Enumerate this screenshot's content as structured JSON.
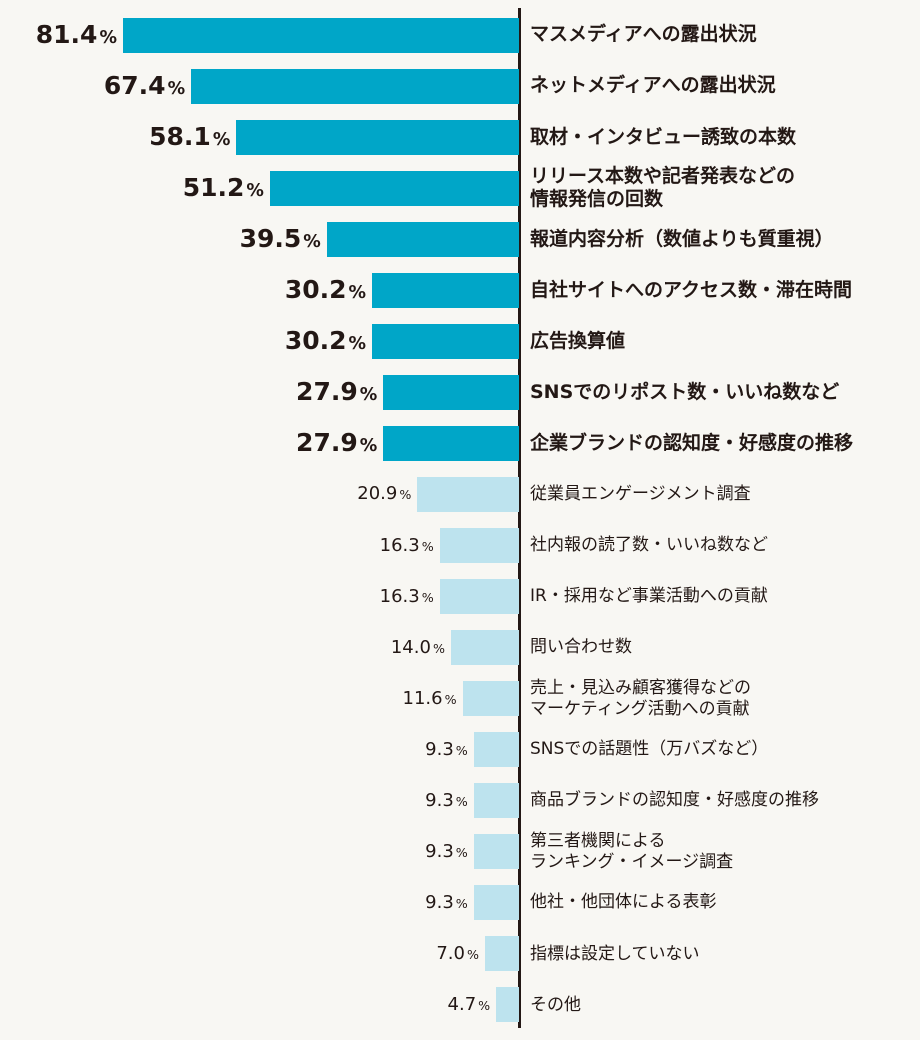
{
  "chart_data": {
    "type": "bar",
    "orientation": "horizontal",
    "title": "",
    "xlabel": "",
    "ylabel": "",
    "xlim": [
      0,
      81.4
    ],
    "unit": "%",
    "colors": {
      "highlight": "#00a6c8",
      "normal": "#bde3ee",
      "axis": "#231815",
      "background": "#f8f7f3"
    },
    "categories": [
      "マスメディアへの露出状況",
      "ネットメディアへの露出状況",
      "取材・インタビュー誘致の本数",
      "リリース本数や記者発表などの\n情報発信の回数",
      "報道内容分析（数値よりも質重視）",
      "自社サイトへのアクセス数・滞在時間",
      "広告換算値",
      "SNSでのリポスト数・いいね数など",
      "企業ブランドの認知度・好感度の推移",
      "従業員エンゲージメント調査",
      "社内報の読了数・いいね数など",
      "IR・採用など事業活動への貢献",
      "問い合わせ数",
      "売上・見込み顧客獲得などの\nマーケティング活動への貢献",
      "SNSでの話題性（万バズなど）",
      "商品ブランドの認知度・好感度の推移",
      "第三者機関による\nランキング・イメージ調査",
      "他社・他団体による表彰",
      "指標は設定していない",
      "その他"
    ],
    "values": [
      81.4,
      67.4,
      58.1,
      51.2,
      39.5,
      30.2,
      30.2,
      27.9,
      27.9,
      20.9,
      16.3,
      16.3,
      14.0,
      11.6,
      9.3,
      9.3,
      9.3,
      9.3,
      7.0,
      4.7
    ],
    "value_labels": [
      "81.4",
      "67.4",
      "58.1",
      "51.2",
      "39.5",
      "30.2",
      "30.2",
      "27.9",
      "27.9",
      "20.9",
      "16.3",
      "16.3",
      "14.0",
      "11.6",
      "9.3",
      "9.3",
      "9.3",
      "9.3",
      "7.0",
      "4.7"
    ],
    "highlighted": [
      true,
      true,
      true,
      true,
      true,
      true,
      true,
      true,
      true,
      false,
      false,
      false,
      false,
      false,
      false,
      false,
      false,
      false,
      false,
      false
    ]
  }
}
